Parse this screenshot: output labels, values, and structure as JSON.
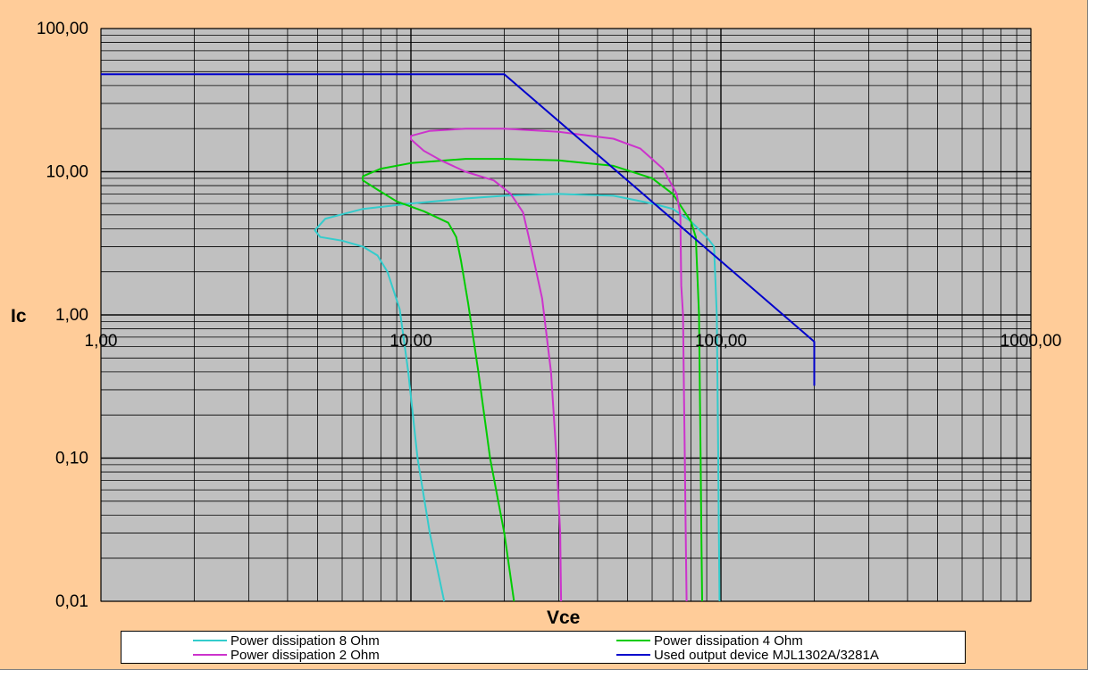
{
  "chart_data": {
    "type": "line",
    "xlabel": "Vce",
    "ylabel": "Ic",
    "x_scale": "log",
    "y_scale": "log",
    "xlim": [
      1,
      1000
    ],
    "ylim": [
      0.01,
      100
    ],
    "x_ticks": [
      {
        "value": 1,
        "label": "1,00"
      },
      {
        "value": 10,
        "label": "10,00"
      },
      {
        "value": 100,
        "label": "100,00"
      },
      {
        "value": 1000,
        "label": "1000,00"
      }
    ],
    "y_ticks": [
      {
        "value": 100,
        "label": "100,00"
      },
      {
        "value": 10,
        "label": "10,00"
      },
      {
        "value": 1,
        "label": "1,00"
      },
      {
        "value": 0.1,
        "label": "0,10"
      },
      {
        "value": 0.01,
        "label": "0,01"
      }
    ],
    "grid": true,
    "legend_position": "bottom",
    "plot_background": "#C0C0C0",
    "chart_background": "#FFCC99",
    "series": [
      {
        "name": "Power dissipation 8 Ohm",
        "color": "#33CCCC",
        "points": [
          [
            12.8,
            0.01
          ],
          [
            11.5,
            0.03
          ],
          [
            10.5,
            0.1
          ],
          [
            9.8,
            0.4
          ],
          [
            9.2,
            1.1
          ],
          [
            8.4,
            2.0
          ],
          [
            7.8,
            2.6
          ],
          [
            7.0,
            3.0
          ],
          [
            6.0,
            3.3
          ],
          [
            5.1,
            3.5
          ],
          [
            4.9,
            3.9
          ],
          [
            5.3,
            4.7
          ],
          [
            7.0,
            5.5
          ],
          [
            10,
            6.0
          ],
          [
            15,
            6.5
          ],
          [
            20,
            6.8
          ],
          [
            30,
            7.0
          ],
          [
            45,
            6.8
          ],
          [
            60,
            6.0
          ],
          [
            70,
            5.5
          ],
          [
            80,
            4.5
          ],
          [
            90,
            3.5
          ],
          [
            95,
            3.0
          ],
          [
            97,
            1.0
          ],
          [
            98,
            0.1
          ],
          [
            98.5,
            0.03
          ],
          [
            99,
            0.01
          ]
        ]
      },
      {
        "name": "Power dissipation 4 Ohm",
        "color": "#00CC00",
        "points": [
          [
            21.5,
            0.01
          ],
          [
            20,
            0.03
          ],
          [
            18,
            0.1
          ],
          [
            16.5,
            0.4
          ],
          [
            15.3,
            1.2
          ],
          [
            14.5,
            2.4
          ],
          [
            14.0,
            3.5
          ],
          [
            13.2,
            4.4
          ],
          [
            11.0,
            5.3
          ],
          [
            9.0,
            6.2
          ],
          [
            7.8,
            7.5
          ],
          [
            7.0,
            8.7
          ],
          [
            7.0,
            9.3
          ],
          [
            8.0,
            10.5
          ],
          [
            10,
            11.5
          ],
          [
            15,
            12.3
          ],
          [
            20,
            12.3
          ],
          [
            30,
            12.0
          ],
          [
            45,
            11.0
          ],
          [
            60,
            9.0
          ],
          [
            70,
            7.0
          ],
          [
            80,
            4.5
          ],
          [
            83,
            3.5
          ],
          [
            85,
            1.0
          ],
          [
            86,
            0.1
          ],
          [
            86.5,
            0.03
          ],
          [
            87,
            0.01
          ]
        ]
      },
      {
        "name": "Power dissipation 2 Ohm",
        "color": "#CC33CC",
        "points": [
          [
            30.5,
            0.01
          ],
          [
            30.3,
            0.03
          ],
          [
            29.5,
            0.1
          ],
          [
            28.3,
            0.4
          ],
          [
            26.5,
            1.3
          ],
          [
            24.0,
            3.5
          ],
          [
            23,
            5.2
          ],
          [
            21,
            7.0
          ],
          [
            18.5,
            8.7
          ],
          [
            15,
            10.0
          ],
          [
            12.5,
            12.0
          ],
          [
            11,
            14.0
          ],
          [
            10,
            16.8
          ],
          [
            10,
            17.8
          ],
          [
            11.5,
            19.3
          ],
          [
            15,
            20.0
          ],
          [
            20,
            20.0
          ],
          [
            30,
            19.0
          ],
          [
            45,
            17.0
          ],
          [
            55,
            14.5
          ],
          [
            65,
            10.5
          ],
          [
            72,
            7.0
          ],
          [
            74,
            5.0
          ],
          [
            74.5,
            1.6
          ],
          [
            75.5,
            1.0
          ],
          [
            76,
            0.3
          ],
          [
            76.5,
            0.1
          ],
          [
            77,
            0.03
          ],
          [
            77.5,
            0.01
          ]
        ]
      },
      {
        "name": "Used output device MJL1302A/3281A",
        "color": "#0000CC",
        "points": [
          [
            1,
            48
          ],
          [
            20,
            48
          ],
          [
            200,
            0.65
          ],
          [
            200,
            0.32
          ]
        ]
      }
    ]
  },
  "legend": {
    "items": [
      {
        "label": "Power dissipation 8 Ohm",
        "color": "#33CCCC"
      },
      {
        "label": "Power dissipation 4 Ohm",
        "color": "#00CC00"
      },
      {
        "label": "Power dissipation 2 Ohm",
        "color": "#CC33CC"
      },
      {
        "label": "Used output device MJL1302A/3281A",
        "color": "#0000CC"
      }
    ]
  }
}
